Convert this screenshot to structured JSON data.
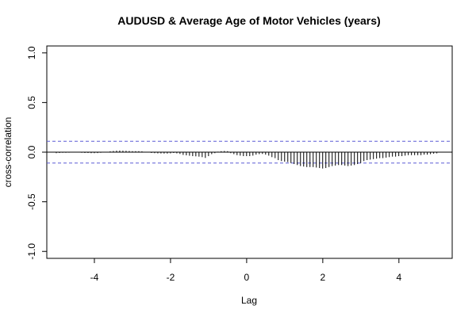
{
  "chart_data": {
    "type": "bar",
    "title": "AUDUSD & Average Age of Motor Vehicles (years)",
    "xlabel": "Lag",
    "ylabel": "cross-correlation",
    "xlim": [
      -5.25,
      5.4
    ],
    "ylim": [
      -1.07,
      1.07
    ],
    "x_ticks": [
      -4,
      -2,
      0,
      2,
      4
    ],
    "x_tick_labels": [
      "-4",
      "-2",
      "0",
      "2",
      "4"
    ],
    "y_ticks": [
      -1.0,
      -0.5,
      0.0,
      0.5,
      1.0
    ],
    "y_tick_labels": [
      "-1.0",
      "-0.5",
      "0.0",
      "0.5",
      "1.0"
    ],
    "confidence_bound": 0.11,
    "colors": {
      "bars": "#000000",
      "zero_line": "#000000",
      "confidence_lines": "#5b5bd6"
    },
    "lag_start": -5.0,
    "lag_step": 0.0833,
    "values": [
      -0.01,
      -0.008,
      -0.006,
      -0.006,
      -0.005,
      -0.004,
      -0.003,
      -0.004,
      -0.006,
      -0.008,
      -0.008,
      -0.01,
      -0.01,
      -0.009,
      -0.006,
      -0.003,
      0.002,
      0.008,
      0.012,
      0.015,
      0.016,
      0.015,
      0.014,
      0.012,
      0.01,
      0.01,
      0.01,
      0.008,
      0.004,
      -0.002,
      -0.008,
      -0.01,
      -0.012,
      -0.013,
      -0.014,
      -0.014,
      -0.012,
      -0.008,
      -0.012,
      -0.018,
      -0.028,
      -0.032,
      -0.036,
      -0.04,
      -0.042,
      -0.045,
      -0.05,
      -0.058,
      -0.04,
      -0.02,
      -0.01,
      0.005,
      0.01,
      0.012,
      0.01,
      -0.01,
      -0.02,
      -0.03,
      -0.035,
      -0.04,
      -0.04,
      -0.04,
      -0.035,
      -0.025,
      -0.02,
      -0.018,
      -0.025,
      -0.035,
      -0.05,
      -0.06,
      -0.08,
      -0.09,
      -0.095,
      -0.1,
      -0.11,
      -0.12,
      -0.13,
      -0.14,
      -0.145,
      -0.15,
      -0.15,
      -0.15,
      -0.155,
      -0.16,
      -0.165,
      -0.16,
      -0.15,
      -0.14,
      -0.135,
      -0.13,
      -0.13,
      -0.135,
      -0.14,
      -0.135,
      -0.13,
      -0.12,
      -0.11,
      -0.09,
      -0.08,
      -0.075,
      -0.07,
      -0.065,
      -0.06,
      -0.06,
      -0.055,
      -0.05,
      -0.045,
      -0.045,
      -0.04,
      -0.04,
      -0.035,
      -0.03,
      -0.03,
      -0.03,
      -0.03,
      -0.03,
      -0.025,
      -0.025,
      -0.02,
      -0.015,
      -0.012
    ]
  }
}
